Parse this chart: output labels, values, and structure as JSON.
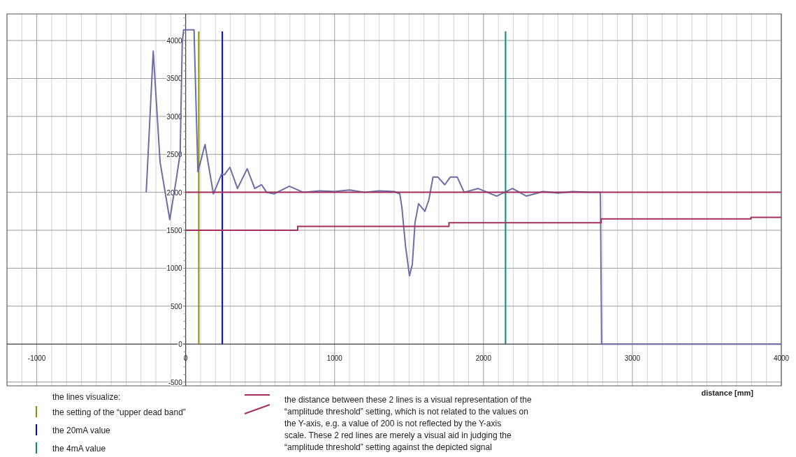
{
  "chart_data": {
    "type": "line",
    "xlabel": "distance [mm]",
    "xlim": [
      -1200,
      4000
    ],
    "ylim": [
      -550,
      4350
    ],
    "xticks": [
      {
        "value": -1200,
        "label": null
      },
      {
        "value": -1100,
        "label": null
      },
      -1000,
      {
        "value": -900,
        "label": null
      },
      {
        "value": -800,
        "label": null
      },
      {
        "value": -700,
        "label": null
      },
      {
        "value": -600,
        "label": null
      },
      {
        "value": -500,
        "label": null
      },
      {
        "value": -400,
        "label": null
      },
      {
        "value": -300,
        "label": null
      },
      {
        "value": -200,
        "label": null
      },
      {
        "value": -100,
        "label": null
      },
      0,
      {
        "value": 100,
        "label": null
      },
      {
        "value": 200,
        "label": null
      },
      {
        "value": 300,
        "label": null
      },
      {
        "value": 400,
        "label": null
      },
      {
        "value": 500,
        "label": null
      },
      {
        "value": 600,
        "label": null
      },
      {
        "value": 700,
        "label": null
      },
      {
        "value": 800,
        "label": null
      },
      {
        "value": 900,
        "label": null
      },
      1000,
      {
        "value": 1100,
        "label": null
      },
      {
        "value": 1200,
        "label": null
      },
      {
        "value": 1300,
        "label": null
      },
      {
        "value": 1400,
        "label": null
      },
      {
        "value": 1500,
        "label": null
      },
      {
        "value": 1600,
        "label": null
      },
      {
        "value": 1700,
        "label": null
      },
      {
        "value": 1800,
        "label": null
      },
      {
        "value": 1900,
        "label": null
      },
      2000,
      {
        "value": 2100,
        "label": null
      },
      {
        "value": 2200,
        "label": null
      },
      {
        "value": 2300,
        "label": null
      },
      {
        "value": 2400,
        "label": null
      },
      {
        "value": 2500,
        "label": null
      },
      {
        "value": 2600,
        "label": null
      },
      {
        "value": 2700,
        "label": null
      },
      {
        "value": 2800,
        "label": null
      },
      {
        "value": 2900,
        "label": null
      },
      3000,
      {
        "value": 3100,
        "label": null
      },
      {
        "value": 3200,
        "label": null
      },
      {
        "value": 3300,
        "label": null
      },
      {
        "value": 3400,
        "label": null
      },
      {
        "value": 3500,
        "label": null
      },
      {
        "value": 3600,
        "label": null
      },
      {
        "value": 3700,
        "label": null
      },
      {
        "value": 3800,
        "label": null
      },
      {
        "value": 3900,
        "label": null
      },
      4000
    ],
    "yticks": [
      -500,
      0,
      500,
      1000,
      1500,
      2000,
      2500,
      3000,
      3500,
      4000
    ],
    "grid": true,
    "legend": "bottom left",
    "marker": "none",
    "line_style": "solid",
    "series": [
      {
        "color": "#6b6ea8",
        "x": [
          -265,
          -218,
          -172,
          -107,
          -60,
          -37,
          -23,
          -14,
          56,
          79,
          82,
          130,
          186,
          241,
          260,
          297,
          348,
          413,
          464,
          510,
          543,
          594,
          696,
          789,
          900,
          1000,
          1100,
          1200,
          1300,
          1400,
          1438,
          1452,
          1476,
          1503,
          1522,
          1540,
          1564,
          1606,
          1633,
          1661,
          1694,
          1740,
          1777,
          1824,
          1870,
          1963,
          2088,
          2195,
          2288,
          2400,
          2500,
          2600,
          2700,
          2785,
          2793,
          4000
        ],
        "values": [
          2000,
          3860,
          2400,
          1640,
          2210,
          2520,
          3970,
          4140,
          4140,
          2490,
          2270,
          2630,
          1980,
          2240,
          2230,
          2330,
          2050,
          2310,
          2050,
          2100,
          2000,
          1980,
          2080,
          2000,
          2020,
          2010,
          2030,
          2000,
          2020,
          2010,
          1980,
          1800,
          1300,
          900,
          1050,
          1600,
          1850,
          1750,
          1900,
          2200,
          2200,
          2100,
          2200,
          2200,
          2000,
          2050,
          1950,
          2050,
          1950,
          2010,
          1990,
          2010,
          2000,
          2000,
          0,
          0
        ]
      },
      {
        "type": "step",
        "color": "#a0305f",
        "x": [
          0,
          4000
        ],
        "values": [
          2000,
          2000
        ]
      },
      {
        "type": "step",
        "color": "#a0305f",
        "x": [
          0,
          752,
          1768,
          2790,
          3796,
          4000
        ],
        "values": [
          1500,
          1550,
          1600,
          1650,
          1670,
          1670
        ]
      }
    ],
    "ref_lines": [
      {
        "axis": "x",
        "value": 88,
        "label": "the setting of the “upper dead band”",
        "color": "#8f8f00"
      },
      {
        "axis": "x",
        "value": 246,
        "label": "the 20mA value",
        "color": "#0000ff"
      },
      {
        "axis": "x",
        "value": 2148,
        "label": "the 4mA value",
        "color": "#008b80"
      }
    ],
    "annotations": [
      "the lines visualize:",
      "the distance between these 2 lines is a visual representation of the “amplitude threshold” setting, which is not related to the values on the Y-axis, e.g. a value of 200 is not reflected by the Y-axis scale. These 2 red lines are merely a visual aid in judging the “amplitude threshold” setting against the depicted signal"
    ]
  }
}
